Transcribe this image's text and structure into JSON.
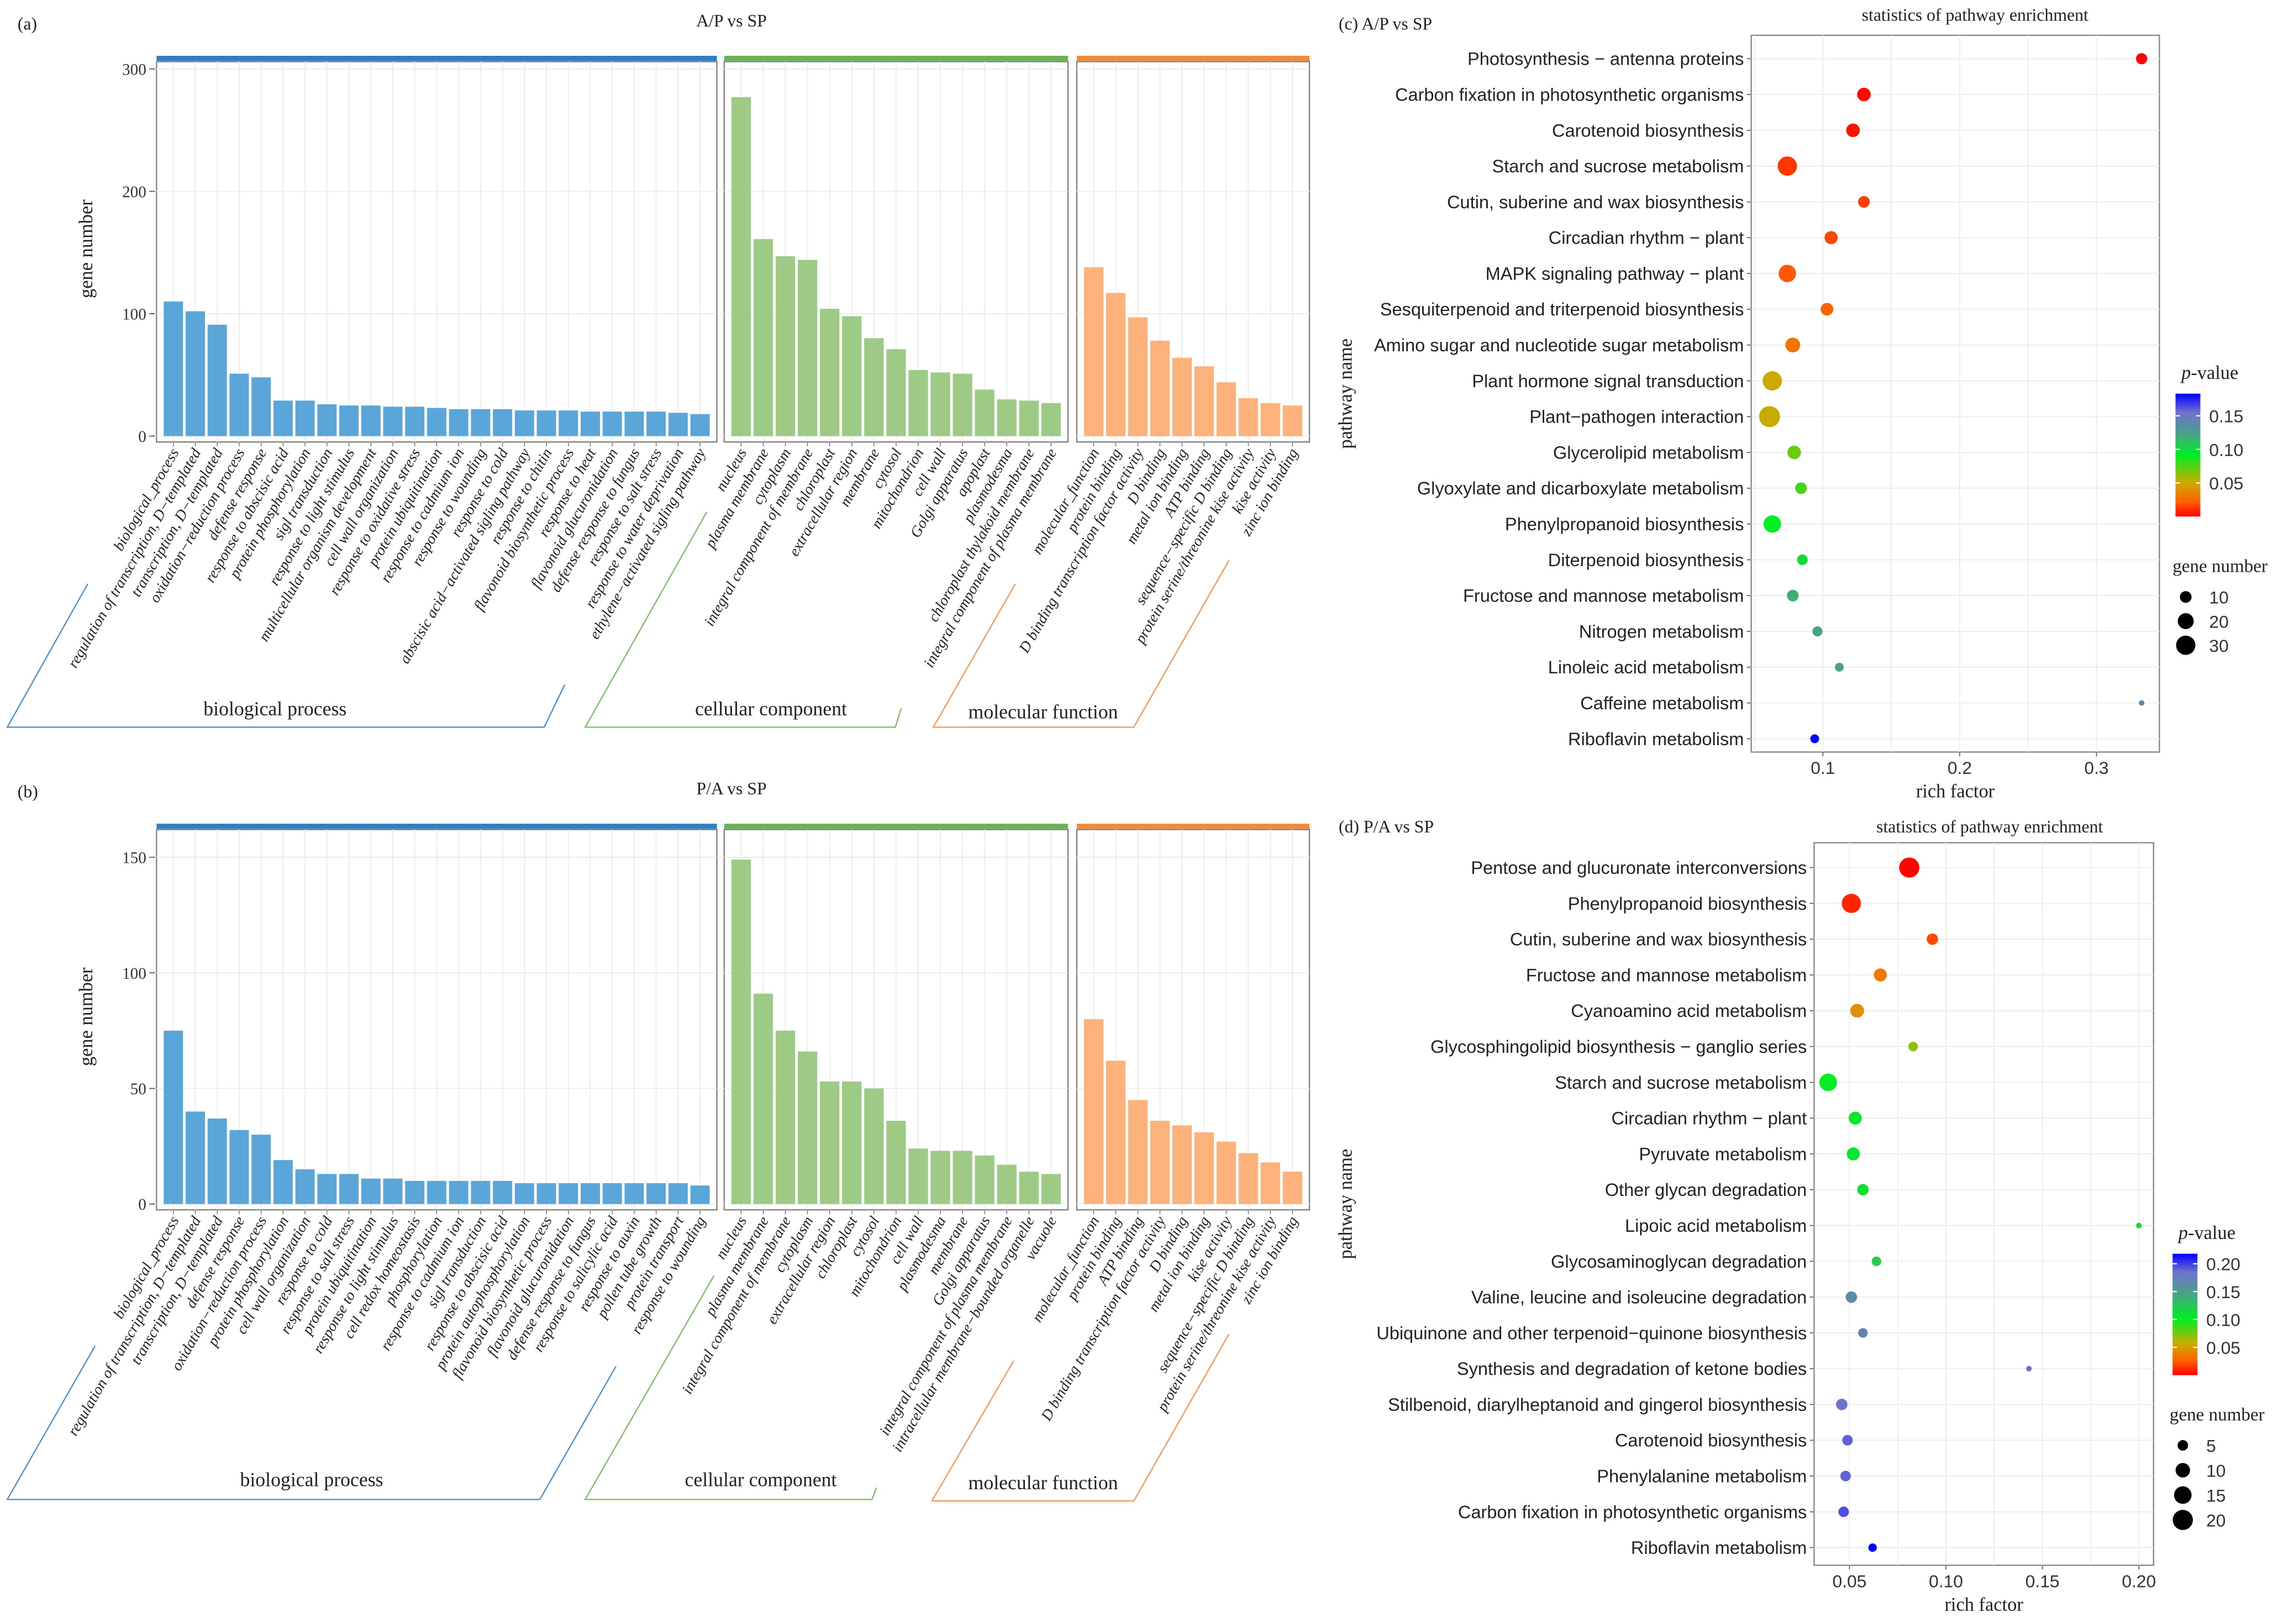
{
  "chart_data": [
    {
      "type": "bar",
      "panel_label": "(a)",
      "title": "A/P vs SP",
      "ylabel": "gene number",
      "ylim": [
        0,
        306
      ],
      "yticks": [
        0,
        100,
        200,
        300
      ],
      "ytick_labels": [
        "0",
        "100",
        "200",
        "300"
      ],
      "grid": true,
      "facets": [
        {
          "name": "biological process",
          "strip_color": "#2c80c3",
          "bar_color": "#5ba6d8",
          "categories": [
            "biological_process",
            "regulation of transcription, D−templated",
            "transcription, D−templated",
            "oxidation−reduction process",
            "defense response",
            "response to abscisic acid",
            "protein phosphorylation",
            "sigl transduction",
            "response to light stimulus",
            "multicellular organism development",
            "cell wall organization",
            "response to oxidative stress",
            "protein ubiquitination",
            "response to cadmium ion",
            "response to wounding",
            "response to cold",
            "abscisic acid−activated sigling pathway",
            "response to chitin",
            "flavonoid biosynthetic process",
            "response to heat",
            "flavonoid glucuronidation",
            "defense response to fungus",
            "response to salt stress",
            "response to water deprivation",
            "ethylene−activated sigling pathway"
          ],
          "values": [
            110,
            102,
            91,
            51,
            48,
            29,
            29,
            26,
            25,
            25,
            24,
            24,
            23,
            22,
            22,
            22,
            21,
            21,
            21,
            20,
            20,
            20,
            20,
            19,
            18
          ]
        },
        {
          "name": "cellular component",
          "strip_color": "#6cb255",
          "bar_color": "#9dcb86",
          "categories": [
            "nucleus",
            "plasma membrane",
            "cytoplasm",
            "integral component of membrane",
            "chloroplast",
            "extracellular region",
            "membrane",
            "cytosol",
            "mitochondrion",
            "cell wall",
            "Golgi apparatus",
            "apoplast",
            "plasmodesma",
            "chloroplast thylakoid membrane",
            "integral component of plasma membrane"
          ],
          "values": [
            277,
            161,
            147,
            144,
            104,
            98,
            80,
            71,
            54,
            52,
            51,
            38,
            30,
            29,
            27
          ]
        },
        {
          "name": "molecular function",
          "strip_color": "#f28a3c",
          "bar_color": "#fdb27c",
          "categories": [
            "molecular_function",
            "protein binding",
            "D binding transcription factor activity",
            "D binding",
            "metal ion binding",
            "ATP binding",
            "sequence−specific D binding",
            "protein serine/threonine kise activity",
            "kise activity",
            "zinc ion binding"
          ],
          "values": [
            138,
            117,
            97,
            78,
            64,
            57,
            44,
            31,
            27,
            25
          ]
        }
      ]
    },
    {
      "type": "bar",
      "panel_label": "(b)",
      "title": "P/A vs SP",
      "ylabel": "gene number",
      "ylim": [
        0,
        162
      ],
      "yticks": [
        0,
        50,
        100,
        150
      ],
      "ytick_labels": [
        "0",
        "50",
        "100",
        "150"
      ],
      "grid": true,
      "facets": [
        {
          "name": "biological process",
          "strip_color": "#2c80c3",
          "bar_color": "#5ba6d8",
          "categories": [
            "biological_process",
            "regulation of transcription, D−templated",
            "transcription, D−templated",
            "defense response",
            "oxidation−reduction process",
            "protein phosphorylation",
            "cell wall organization",
            "response to cold",
            "response to salt stress",
            "protein ubiquitination",
            "response to light stimulus",
            "cell redox homeostasis",
            "phosphorylation",
            "response to cadmium ion",
            "sigl transduction",
            "response to abscisic acid",
            "protein autophosphorylation",
            "flavonoid biosynthetic process",
            "flavonoid glucuronidation",
            "defense response to fungus",
            "response to salicylic acid",
            "response to auxin",
            "pollen tube growth",
            "protein transport",
            "response to wounding"
          ],
          "values": [
            75,
            40,
            37,
            32,
            30,
            19,
            15,
            13,
            13,
            11,
            11,
            10,
            10,
            10,
            10,
            10,
            9,
            9,
            9,
            9,
            9,
            9,
            9,
            9,
            8
          ]
        },
        {
          "name": "cellular component",
          "strip_color": "#6cb255",
          "bar_color": "#9dcb86",
          "categories": [
            "nucleus",
            "plasma membrane",
            "integral component of membrane",
            "cytoplasm",
            "extracellular region",
            "chloroplast",
            "cytosol",
            "mitochondrion",
            "cell wall",
            "plasmodesma",
            "membrane",
            "Golgi apparatus",
            "integral component of plasma membrane",
            "intracellular membrane−bounded organelle",
            "vacuole"
          ],
          "values": [
            149,
            91,
            75,
            66,
            53,
            53,
            50,
            36,
            24,
            23,
            23,
            21,
            17,
            14,
            13
          ]
        },
        {
          "name": "molecular function",
          "strip_color": "#f28a3c",
          "bar_color": "#fdb27c",
          "categories": [
            "molecular_function",
            "protein binding",
            "ATP binding",
            "D binding transcription factor activity",
            "D binding",
            "metal ion binding",
            "kise activity",
            "sequence−specific D binding",
            "protein serine/threonine kise activity",
            "zinc ion binding"
          ],
          "values": [
            80,
            62,
            45,
            36,
            34,
            31,
            27,
            22,
            18,
            14
          ]
        }
      ]
    },
    {
      "type": "scatter",
      "panel_label": "(c) A/P vs SP",
      "title": "statistics of pathway enrichment",
      "xlabel": "rich factor",
      "ylabel": "pathway name",
      "xlim": [
        0.0476,
        0.346
      ],
      "xticks": [
        0.1,
        0.2,
        0.3
      ],
      "xtick_labels": [
        "0.1",
        "0.2",
        "0.3"
      ],
      "grid": true,
      "pathways": [
        "Photosynthesis − antenna proteins",
        "Carbon fixation in photosynthetic organisms",
        "Carotenoid biosynthesis",
        "Starch and sucrose metabolism",
        "Cutin, suberine and wax biosynthesis",
        "Circadian rhythm − plant",
        "MAPK signaling pathway − plant",
        "Sesquiterpenoid and triterpenoid biosynthesis",
        "Amino sugar and nucleotide sugar metabolism",
        "Plant hormone signal transduction",
        "Plant−pathogen interaction",
        "Glycerolipid metabolism",
        "Glyoxylate and dicarboxylate metabolism",
        "Phenylpropanoid biosynthesis",
        "Diterpenoid biosynthesis",
        "Fructose and mannose metabolism",
        "Nitrogen metabolism",
        "Linoleic acid metabolism",
        "Caffeine metabolism",
        "Riboflavin metabolism"
      ],
      "rich_factor": [
        0.333,
        0.13,
        0.122,
        0.074,
        0.13,
        0.106,
        0.074,
        0.103,
        0.078,
        0.063,
        0.061,
        0.079,
        0.084,
        0.063,
        0.085,
        0.078,
        0.096,
        0.112,
        0.333,
        0.094
      ],
      "gene_number": [
        9,
        14,
        14,
        30,
        10,
        13,
        24,
        12,
        17,
        30,
        36,
        14,
        10,
        24,
        8,
        10,
        7,
        5,
        1,
        5
      ],
      "p_value": [
        0.0005,
        0.002,
        0.004,
        0.012,
        0.014,
        0.016,
        0.02,
        0.022,
        0.03,
        0.05,
        0.051,
        0.07,
        0.078,
        0.092,
        0.1,
        0.118,
        0.123,
        0.126,
        0.138,
        0.182
      ],
      "color_legend": {
        "title_italic": "p",
        "title_rest": "-value",
        "range": [
          0,
          0.183
        ],
        "ticks": [
          0.05,
          0.1,
          0.15
        ],
        "tick_labels": [
          "0.05",
          "0.10",
          "0.15"
        ],
        "stops": [
          [
            0,
            "#ff0000"
          ],
          [
            0.12,
            "#ff6200"
          ],
          [
            0.28,
            "#c9ac00"
          ],
          [
            0.5,
            "#00ee22"
          ],
          [
            0.68,
            "#4aa08a"
          ],
          [
            0.85,
            "#7070d0"
          ],
          [
            1,
            "#0000ff"
          ]
        ]
      },
      "size_legend": {
        "title": "gene number",
        "values": [
          10,
          20,
          30
        ],
        "labels": [
          "10",
          "20",
          "30"
        ]
      }
    },
    {
      "type": "scatter",
      "panel_label": "(d) P/A vs SP",
      "title": "statistics of pathway enrichment",
      "xlabel": "rich factor",
      "ylabel": "pathway name",
      "xlim": [
        0.0317,
        0.2076
      ],
      "xticks": [
        0.05,
        0.1,
        0.15,
        0.2
      ],
      "xtick_labels": [
        "0.05",
        "0.10",
        "0.15",
        "0.20"
      ],
      "grid": true,
      "pathways": [
        "Pentose and glucuronate interconversions",
        "Phenylpropanoid biosynthesis",
        "Cutin, suberine and wax biosynthesis",
        "Fructose and mannose metabolism",
        "Cyanoamino acid metabolism",
        "Glycosphingolipid biosynthesis − ganglio series",
        "Starch and sucrose metabolism",
        "Circadian rhythm − plant",
        "Pyruvate metabolism",
        "Other glycan degradation",
        "Lipoic acid metabolism",
        "Glycosaminoglycan degradation",
        "Valine, leucine and isoleucine degradation",
        "Ubiquinone and other terpenoid−quinone biosynthesis",
        "Synthesis and degradation of ketone bodies",
        "Stilbenoid, diarylheptanoid and gingerol biosynthesis",
        "Carotenoid biosynthesis",
        "Phenylalanine metabolism",
        "Carbon fixation in photosynthetic organisms",
        "Riboflavin metabolism"
      ],
      "rich_factor": [
        0.081,
        0.051,
        0.093,
        0.066,
        0.054,
        0.083,
        0.039,
        0.053,
        0.052,
        0.057,
        0.2,
        0.064,
        0.051,
        0.057,
        0.143,
        0.046,
        0.049,
        0.048,
        0.047,
        0.062
      ],
      "gene_number": [
        20,
        18,
        6,
        8,
        9,
        4,
        15,
        8,
        8,
        6,
        1,
        4,
        6,
        4,
        1,
        6,
        5,
        5,
        5,
        3
      ],
      "p_value": [
        0.001,
        0.01,
        0.02,
        0.035,
        0.045,
        0.07,
        0.1,
        0.104,
        0.105,
        0.11,
        0.112,
        0.122,
        0.165,
        0.17,
        0.185,
        0.185,
        0.19,
        0.19,
        0.195,
        0.218
      ],
      "color_legend": {
        "title_italic": "p",
        "title_rest": "-value",
        "range": [
          0,
          0.218
        ],
        "ticks": [
          0.05,
          0.1,
          0.15,
          0.2
        ],
        "tick_labels": [
          "0.05",
          "0.10",
          "0.15",
          "0.20"
        ],
        "stops": [
          [
            0,
            "#ff0000"
          ],
          [
            0.12,
            "#ff6200"
          ],
          [
            0.26,
            "#c9ac00"
          ],
          [
            0.46,
            "#00ee22"
          ],
          [
            0.68,
            "#4aa08a"
          ],
          [
            0.85,
            "#7070d0"
          ],
          [
            1,
            "#0000ff"
          ]
        ]
      },
      "size_legend": {
        "title": "gene number",
        "values": [
          5,
          10,
          15,
          20
        ],
        "labels": [
          "5",
          "10",
          "15",
          "20"
        ]
      }
    }
  ]
}
